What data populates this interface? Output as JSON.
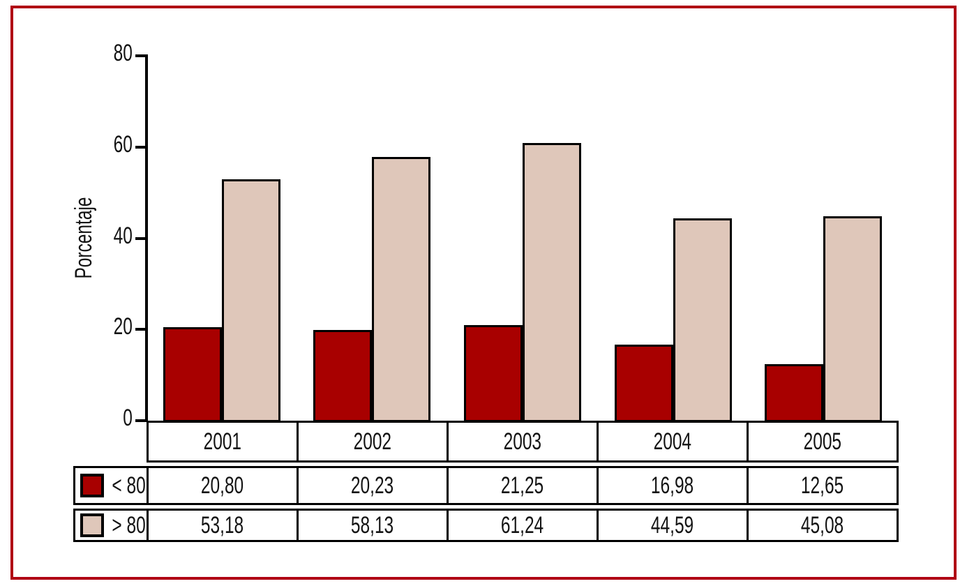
{
  "frame": {
    "border_color": "#b00114"
  },
  "chart_data": {
    "type": "bar",
    "title": "",
    "ylabel": "Porcentaje",
    "xlabel": "",
    "categories": [
      "2001",
      "2002",
      "2003",
      "2004",
      "2005"
    ],
    "series": [
      {
        "id": "lt80",
        "name": "< 80",
        "color": "#a80000",
        "values": [
          20.8,
          20.23,
          21.25,
          16.98,
          12.65
        ],
        "labels": [
          "20,80",
          "20,23",
          "21,25",
          "16,98",
          "12,65"
        ]
      },
      {
        "id": "gt80",
        "name": "> 80",
        "color": "#dfc7ba",
        "values": [
          53.18,
          58.13,
          61.24,
          44.59,
          45.08
        ],
        "labels": [
          "53,18",
          "58,13",
          "61,24",
          "44,59",
          "45,08"
        ]
      }
    ],
    "ylim": [
      0,
      80
    ],
    "yticks": [
      0,
      20,
      40,
      60,
      80
    ],
    "grid": false,
    "legend_position": "table-left",
    "bar_border_color": "#000000",
    "text_color": "#141414"
  }
}
